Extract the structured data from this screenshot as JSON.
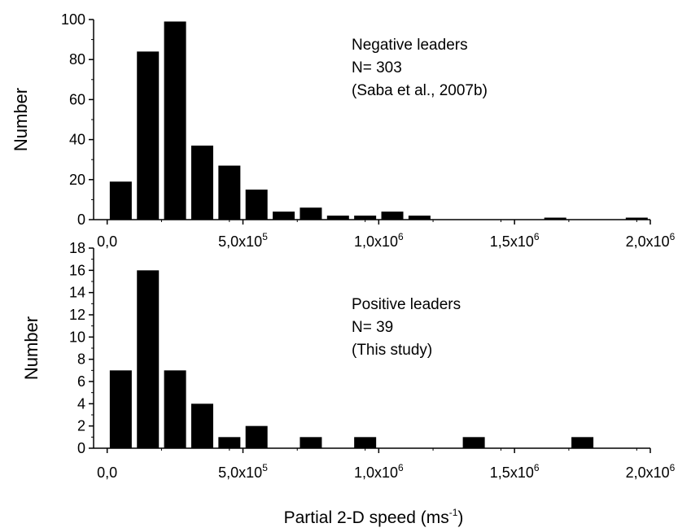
{
  "chart_data": [
    {
      "type": "bar",
      "ylabel": "Number",
      "xlim": [
        -50000,
        2000000
      ],
      "ylim": [
        0,
        100
      ],
      "bin_width": 50000,
      "x_ticks": [
        {
          "value": 0,
          "mant": "0,0",
          "exp": ""
        },
        {
          "value": 500000,
          "mant": "5,0x10",
          "exp": "5"
        },
        {
          "value": 1000000,
          "mant": "1,0x10",
          "exp": "6"
        },
        {
          "value": 1500000,
          "mant": "1,5x10",
          "exp": "6"
        },
        {
          "value": 2000000,
          "mant": "2,0x10",
          "exp": "6"
        }
      ],
      "y_ticks": [
        0,
        20,
        40,
        60,
        80,
        100
      ],
      "annotation": [
        "Negative leaders",
        "N= 303",
        "(Saba et al., 2007b)"
      ],
      "bins": [
        {
          "x": 50000,
          "count": 19
        },
        {
          "x": 150000,
          "count": 84
        },
        {
          "x": 250000,
          "count": 99
        },
        {
          "x": 350000,
          "count": 37
        },
        {
          "x": 450000,
          "count": 27
        },
        {
          "x": 550000,
          "count": 15
        },
        {
          "x": 650000,
          "count": 4
        },
        {
          "x": 750000,
          "count": 6
        },
        {
          "x": 850000,
          "count": 2
        },
        {
          "x": 950000,
          "count": 2
        },
        {
          "x": 1050000,
          "count": 4
        },
        {
          "x": 1150000,
          "count": 2
        },
        {
          "x": 1650000,
          "count": 1
        },
        {
          "x": 1950000,
          "count": 1
        }
      ]
    },
    {
      "type": "bar",
      "ylabel": "Number",
      "xlabel": "Partial 2-D speed (ms",
      "xlabel_exp": "-1",
      "xlabel_tail": ")",
      "xlim": [
        -50000,
        2000000
      ],
      "ylim": [
        0,
        18
      ],
      "bin_width": 50000,
      "x_ticks": [
        {
          "value": 0,
          "mant": "0,0",
          "exp": ""
        },
        {
          "value": 500000,
          "mant": "5,0x10",
          "exp": "5"
        },
        {
          "value": 1000000,
          "mant": "1,0x10",
          "exp": "6"
        },
        {
          "value": 1500000,
          "mant": "1,5x10",
          "exp": "6"
        },
        {
          "value": 2000000,
          "mant": "2,0x10",
          "exp": "6"
        }
      ],
      "y_ticks": [
        0,
        2,
        4,
        6,
        8,
        10,
        12,
        14,
        16,
        18
      ],
      "annotation": [
        "Positive leaders",
        "N= 39",
        "(This study)"
      ],
      "bins": [
        {
          "x": 50000,
          "count": 7
        },
        {
          "x": 150000,
          "count": 16
        },
        {
          "x": 250000,
          "count": 7
        },
        {
          "x": 350000,
          "count": 4
        },
        {
          "x": 450000,
          "count": 1
        },
        {
          "x": 550000,
          "count": 2
        },
        {
          "x": 750000,
          "count": 1
        },
        {
          "x": 950000,
          "count": 1
        },
        {
          "x": 1350000,
          "count": 1
        },
        {
          "x": 1750000,
          "count": 1
        }
      ]
    }
  ]
}
